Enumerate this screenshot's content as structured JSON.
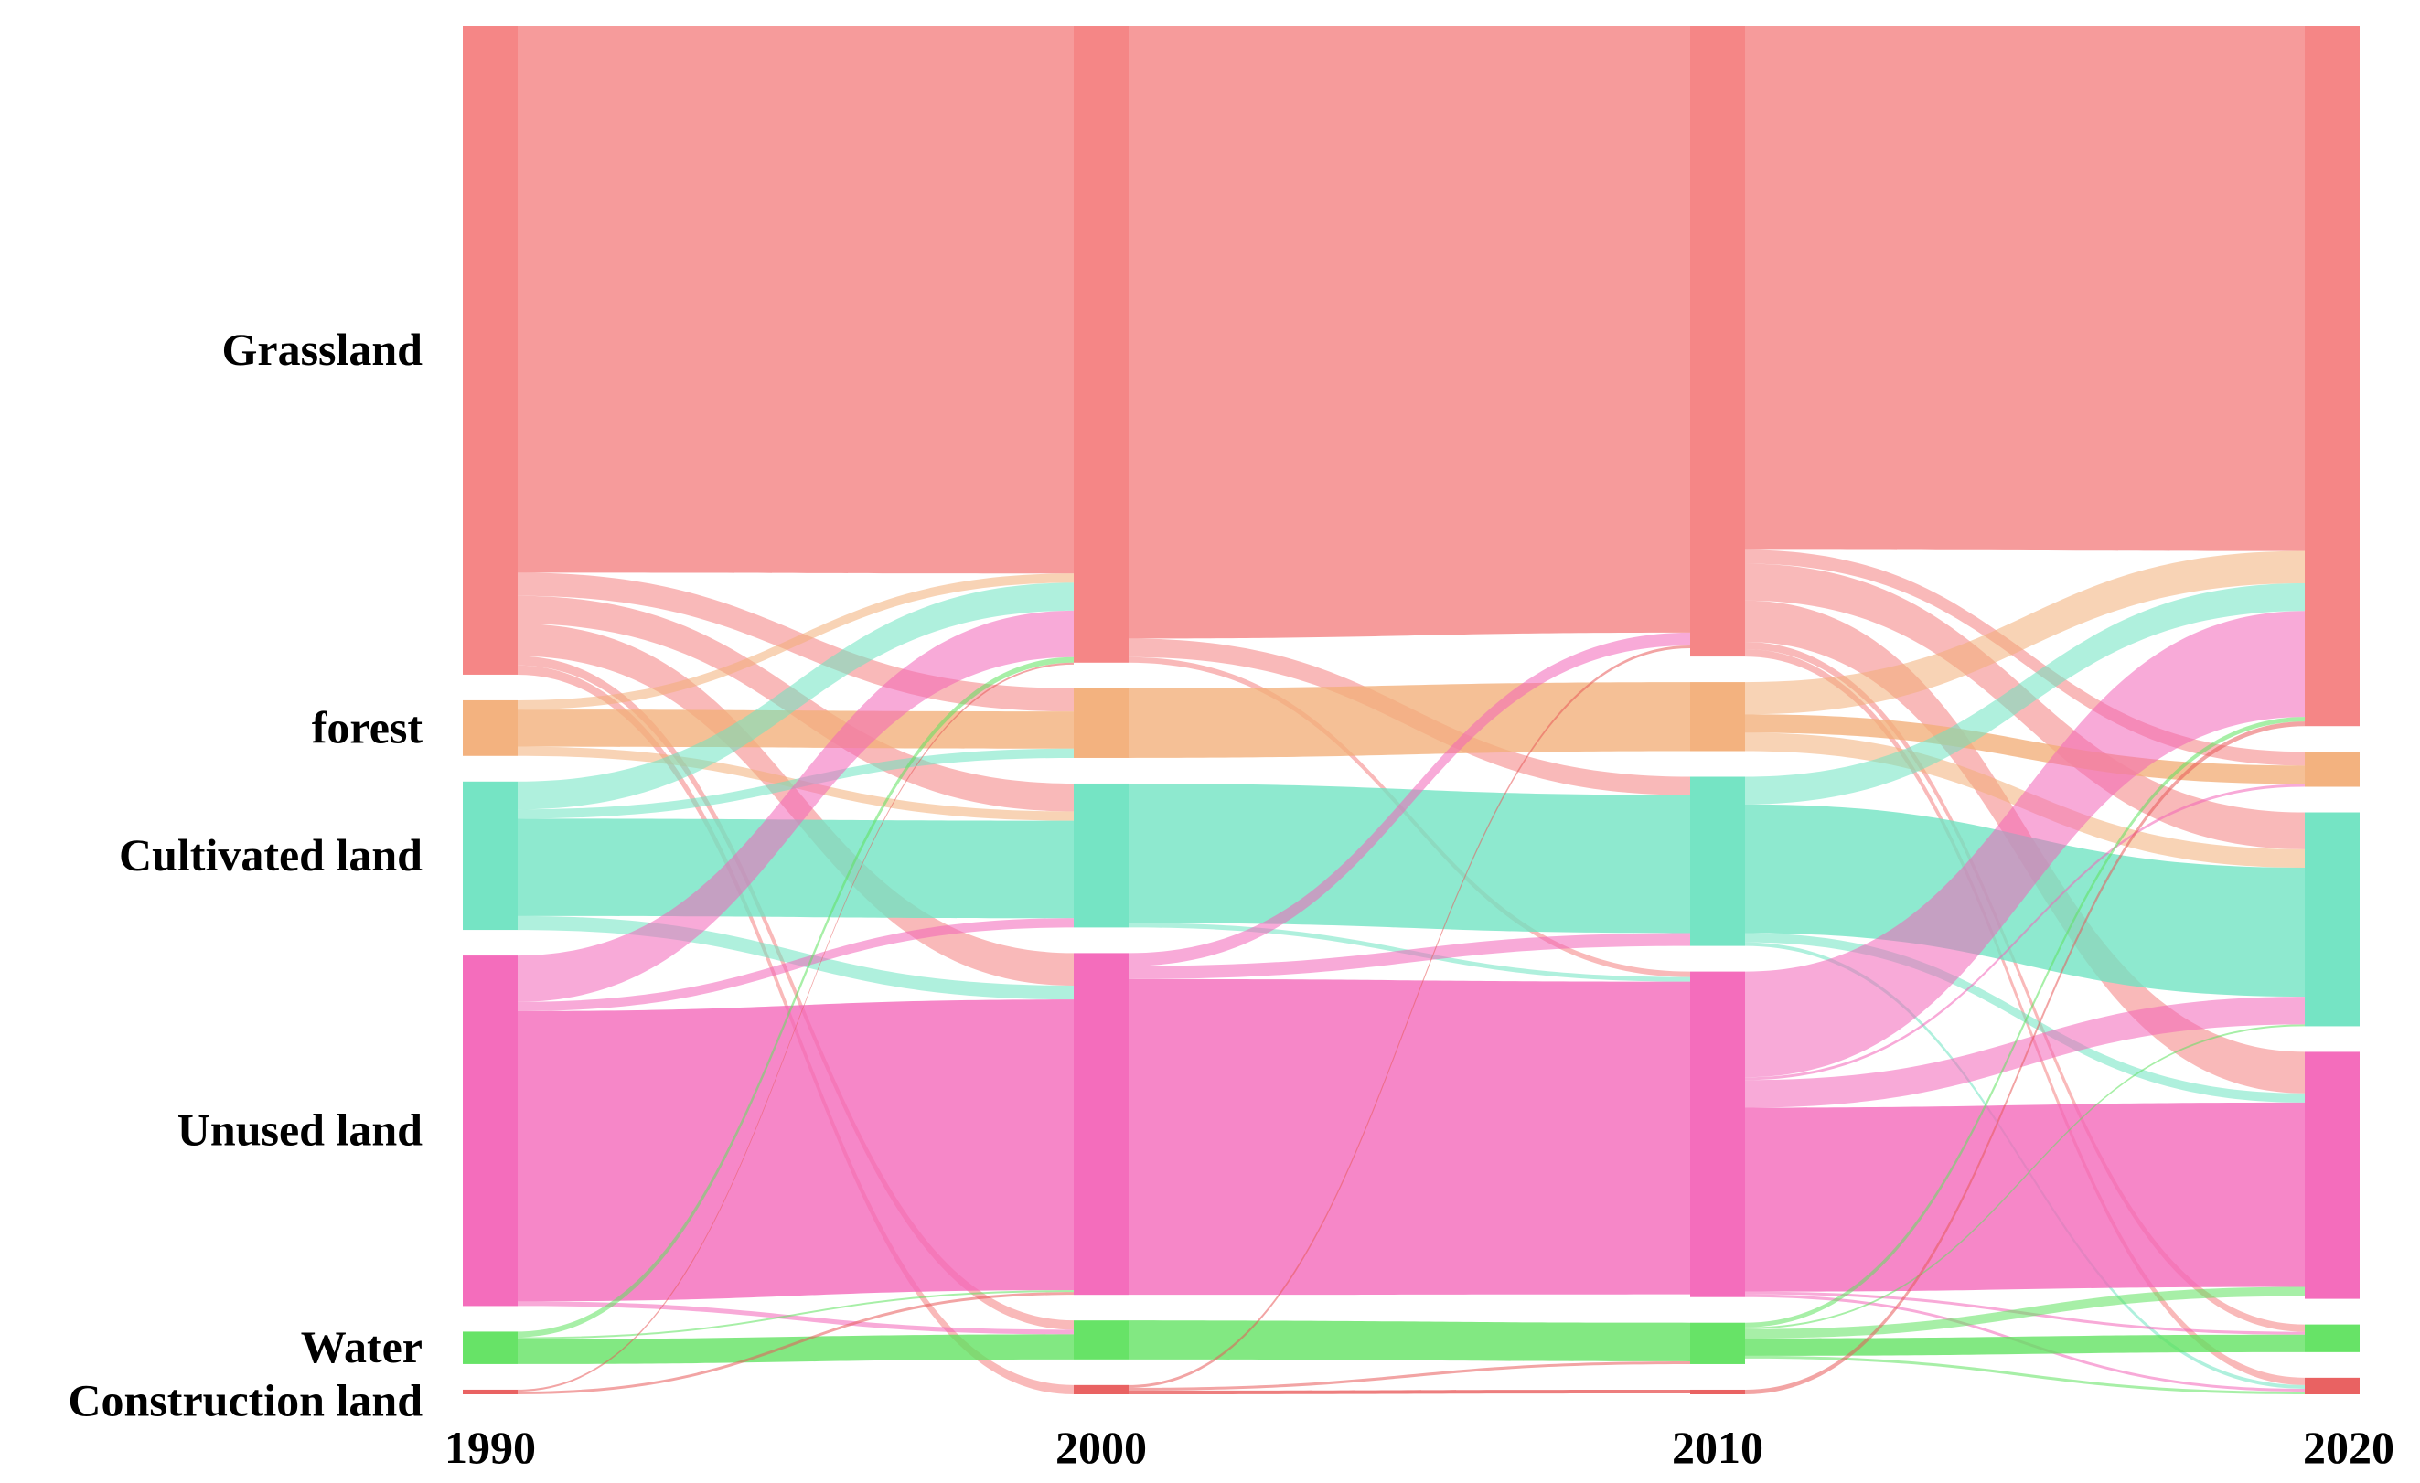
{
  "chart_data": {
    "type": "sankey",
    "title": "",
    "xlabel": "",
    "ylabel": "",
    "years": [
      "1990",
      "2000",
      "2010",
      "2020"
    ],
    "categories": [
      {
        "key": "grassland",
        "label": "Grassland",
        "color": "#f47f7f"
      },
      {
        "key": "forest",
        "label": "forest",
        "color": "#f2ae78"
      },
      {
        "key": "cultivated",
        "label": "Cultivated land",
        "color": "#6ee3c1"
      },
      {
        "key": "unused",
        "label": "Unused land",
        "color": "#f365b8"
      },
      {
        "key": "water",
        "label": "Water",
        "color": "#5fe25f"
      },
      {
        "key": "construction",
        "label": "Construction land",
        "color": "#e85a5a"
      }
    ],
    "node_values": {
      "1990": {
        "grassland": 700,
        "forest": 60,
        "cultivated": 160,
        "unused": 378,
        "water": 35,
        "construction": 5
      },
      "2000": {
        "grassland": 686,
        "forest": 75,
        "cultivated": 155,
        "unused": 368,
        "water": 42,
        "construction": 10
      },
      "2010": {
        "grassland": 686,
        "forest": 75,
        "cultivated": 184,
        "unused": 354,
        "water": 45,
        "construction": 5
      },
      "2020": {
        "grassland": 760,
        "forest": 38,
        "cultivated": 232,
        "unused": 268,
        "water": 30,
        "construction": 18
      }
    },
    "flows": [
      {
        "period": "1990-2000",
        "links": [
          {
            "from": "grassland",
            "to": "grassland",
            "value": 590
          },
          {
            "from": "grassland",
            "to": "forest",
            "value": 25
          },
          {
            "from": "grassland",
            "to": "cultivated",
            "value": 30
          },
          {
            "from": "grassland",
            "to": "unused",
            "value": 35
          },
          {
            "from": "grassland",
            "to": "water",
            "value": 10
          },
          {
            "from": "grassland",
            "to": "construction",
            "value": 10
          },
          {
            "from": "forest",
            "to": "grassland",
            "value": 10
          },
          {
            "from": "forest",
            "to": "forest",
            "value": 40
          },
          {
            "from": "forest",
            "to": "cultivated",
            "value": 10
          },
          {
            "from": "cultivated",
            "to": "grassland",
            "value": 30
          },
          {
            "from": "cultivated",
            "to": "forest",
            "value": 10
          },
          {
            "from": "cultivated",
            "to": "cultivated",
            "value": 105
          },
          {
            "from": "cultivated",
            "to": "unused",
            "value": 15
          },
          {
            "from": "unused",
            "to": "grassland",
            "value": 50
          },
          {
            "from": "unused",
            "to": "cultivated",
            "value": 10
          },
          {
            "from": "unused",
            "to": "unused",
            "value": 313
          },
          {
            "from": "unused",
            "to": "water",
            "value": 5
          },
          {
            "from": "water",
            "to": "grassland",
            "value": 6
          },
          {
            "from": "water",
            "to": "water",
            "value": 27
          },
          {
            "from": "water",
            "to": "unused",
            "value": 2
          },
          {
            "from": "construction",
            "to": "grassland",
            "value": 0
          },
          {
            "from": "construction",
            "to": "unused",
            "value": 3
          },
          {
            "from": "construction",
            "to": "construction",
            "value": 0
          },
          {
            "from": "construction",
            "to": "cultivated",
            "value": 0
          },
          {
            "from": "construction",
            "to": "water",
            "value": 0
          },
          {
            "from": "construction",
            "to": "forest",
            "value": 0
          },
          {
            "from": "construction",
            "to": "grassland",
            "value": 2
          }
        ]
      },
      {
        "period": "2000-2010",
        "links": [
          {
            "from": "grassland",
            "to": "grassland",
            "value": 660
          },
          {
            "from": "grassland",
            "to": "cultivated",
            "value": 20
          },
          {
            "from": "grassland",
            "to": "unused",
            "value": 6
          },
          {
            "from": "forest",
            "to": "forest",
            "value": 75
          },
          {
            "from": "cultivated",
            "to": "cultivated",
            "value": 150
          },
          {
            "from": "cultivated",
            "to": "unused",
            "value": 5
          },
          {
            "from": "unused",
            "to": "grassland",
            "value": 14
          },
          {
            "from": "unused",
            "to": "cultivated",
            "value": 14
          },
          {
            "from": "unused",
            "to": "unused",
            "value": 340
          },
          {
            "from": "water",
            "to": "water",
            "value": 42
          },
          {
            "from": "construction",
            "to": "grassland",
            "value": 3
          },
          {
            "from": "construction",
            "to": "water",
            "value": 3
          },
          {
            "from": "construction",
            "to": "construction",
            "value": 4
          }
        ]
      },
      {
        "period": "2010-2020",
        "links": [
          {
            "from": "grassland",
            "to": "grassland",
            "value": 570
          },
          {
            "from": "grassland",
            "to": "forest",
            "value": 15
          },
          {
            "from": "grassland",
            "to": "cultivated",
            "value": 40
          },
          {
            "from": "grassland",
            "to": "unused",
            "value": 45
          },
          {
            "from": "grassland",
            "to": "water",
            "value": 8
          },
          {
            "from": "grassland",
            "to": "construction",
            "value": 8
          },
          {
            "from": "forest",
            "to": "grassland",
            "value": 35
          },
          {
            "from": "forest",
            "to": "forest",
            "value": 20
          },
          {
            "from": "forest",
            "to": "cultivated",
            "value": 20
          },
          {
            "from": "cultivated",
            "to": "grassland",
            "value": 30
          },
          {
            "from": "cultivated",
            "to": "cultivated",
            "value": 140
          },
          {
            "from": "cultivated",
            "to": "unused",
            "value": 10
          },
          {
            "from": "cultivated",
            "to": "construction",
            "value": 4
          },
          {
            "from": "unused",
            "to": "grassland",
            "value": 115
          },
          {
            "from": "unused",
            "to": "forest",
            "value": 3
          },
          {
            "from": "unused",
            "to": "cultivated",
            "value": 30
          },
          {
            "from": "unused",
            "to": "unused",
            "value": 200
          },
          {
            "from": "unused",
            "to": "water",
            "value": 3
          },
          {
            "from": "unused",
            "to": "construction",
            "value": 3
          },
          {
            "from": "water",
            "to": "grassland",
            "value": 5
          },
          {
            "from": "water",
            "to": "cultivated",
            "value": 2
          },
          {
            "from": "water",
            "to": "unused",
            "value": 10
          },
          {
            "from": "water",
            "to": "water",
            "value": 19
          },
          {
            "from": "water",
            "to": "construction",
            "value": 3
          },
          {
            "from": "construction",
            "to": "grassland",
            "value": 5
          }
        ]
      }
    ]
  }
}
